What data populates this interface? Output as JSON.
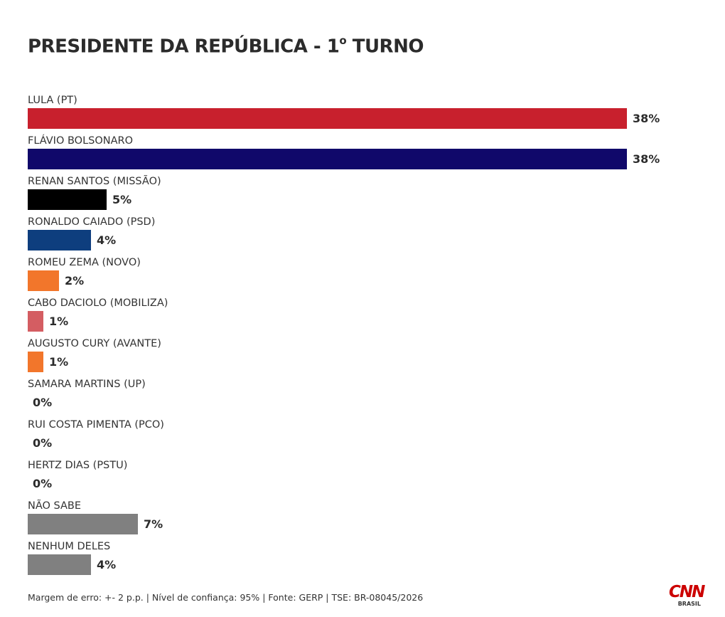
{
  "chart_data": {
    "type": "bar",
    "orientation": "horizontal",
    "title": "PRESIDENTE DA REPÚBLICA - 1º TURNO",
    "title_main": "PRESIDENTE DA REPÚBLICA - 1",
    "title_ordinal": "o",
    "title_end": " TURNO",
    "categories": [
      "LULA (PT)",
      "FLÁVIO BOLSONARO",
      "RENAN SANTOS (MISSÃO)",
      "RONALDO CAIADO (PSD)",
      "ROMEU ZEMA (NOVO)",
      "CABO DACIOLO (MOBILIZA)",
      "AUGUSTO CURY (AVANTE)",
      "SAMARA MARTINS (UP)",
      "RUI COSTA PIMENTA (PCO)",
      "HERTZ DIAS (PSTU)",
      "NÃO SABE",
      "NENHUM DELES"
    ],
    "values": [
      38,
      38,
      5,
      4,
      2,
      1,
      1,
      0,
      0,
      0,
      7,
      4
    ],
    "value_labels": [
      "38%",
      "38%",
      "5%",
      "4%",
      "2%",
      "1%",
      "1%",
      "0%",
      "0%",
      "0%",
      "7%",
      "4%"
    ],
    "colors": [
      "#c8202d",
      "#10086a",
      "#000000",
      "#0e3e7e",
      "#f2762b",
      "#d45d62",
      "#f2762b",
      "#999999",
      "#999999",
      "#999999",
      "#808080",
      "#808080"
    ],
    "xlim": [
      0,
      38
    ],
    "grid": false,
    "legend": "none",
    "unit": "%"
  },
  "footer": {
    "note": "Margem de erro: +- 2 p.p. | Nível de confiança: 95% | Fonte: GERP | TSE: BR-08045/2026"
  },
  "logo": {
    "name": "CNN",
    "subtitle": "BRASIL",
    "color": "#cc0000"
  }
}
